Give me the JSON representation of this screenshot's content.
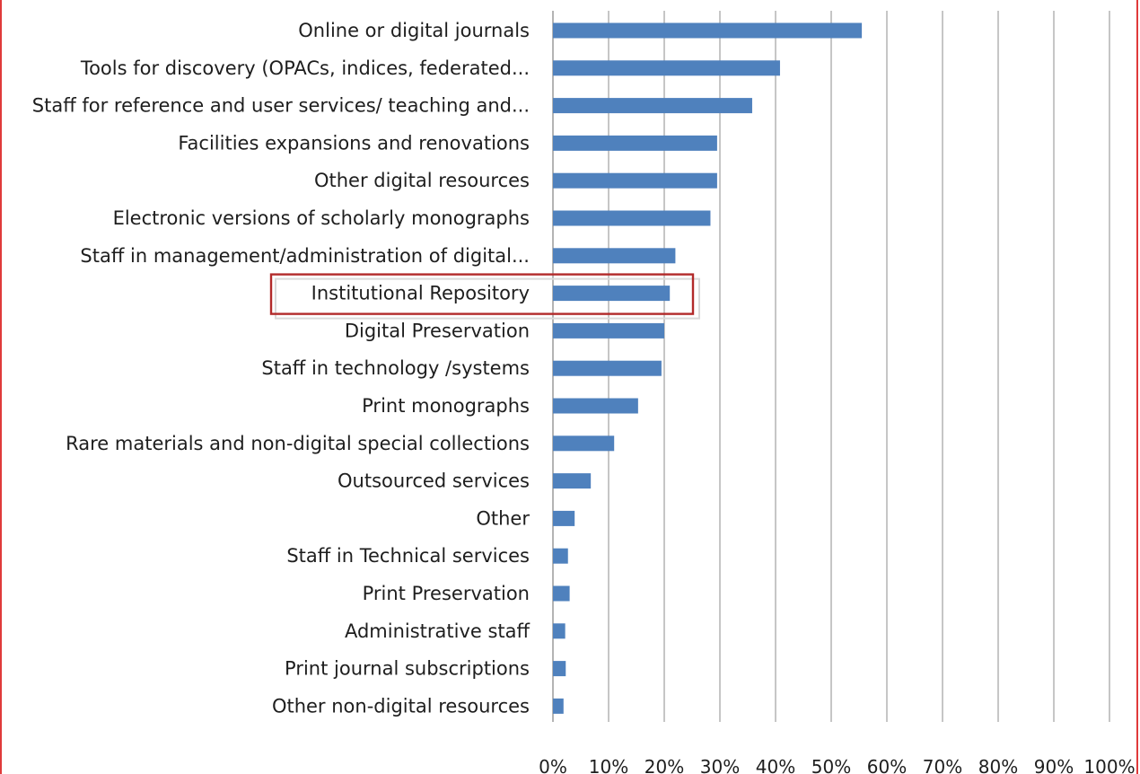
{
  "chart_data": {
    "type": "bar",
    "orientation": "horizontal",
    "categories": [
      "Online or digital journals",
      "Tools for discovery (OPACs, indices, federated...",
      "Staff for reference and user services/ teaching and...",
      "Facilities expansions and renovations",
      "Other digital resources",
      "Electronic versions of scholarly monographs",
      "Staff in management/administration of digital...",
      "Institutional Repository",
      "Digital Preservation",
      "Staff in technology /systems",
      "Print monographs",
      "Rare materials and non-digital special collections",
      "Outsourced services",
      "Other",
      "Staff in Technical services",
      "Print Preservation",
      "Administrative staff",
      "Print journal subscriptions",
      "Other non-digital resources"
    ],
    "values": [
      55.5,
      40.8,
      35.8,
      29.5,
      29.5,
      28.3,
      22.0,
      21.0,
      20.0,
      19.5,
      15.3,
      11.0,
      6.8,
      3.9,
      2.7,
      3.0,
      2.2,
      2.3,
      1.9
    ],
    "x_ticks": [
      "0%",
      "10%",
      "20%",
      "30%",
      "40%",
      "50%",
      "60%",
      "70%",
      "80%",
      "90%",
      "100%"
    ],
    "xlim": [
      0,
      100
    ],
    "grid": true,
    "highlighted_category": "Institutional Repository",
    "bar_color": "#4f81bd",
    "highlight_color": "#b22a2a"
  }
}
